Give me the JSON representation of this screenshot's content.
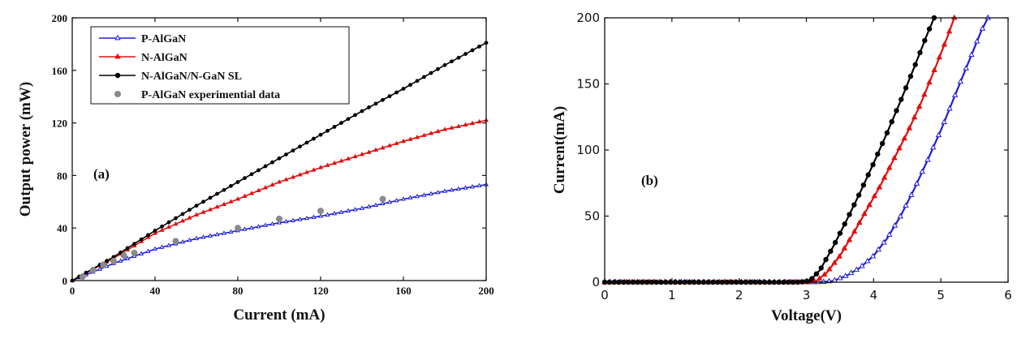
{
  "chart_data": [
    {
      "type": "line",
      "panel_label": "(a)",
      "xlabel": "Current (mA)",
      "ylabel": "Output power (mW)",
      "xlim": [
        0,
        200
      ],
      "ylim": [
        0,
        200
      ],
      "xticks": [
        0,
        40,
        80,
        120,
        160,
        200
      ],
      "yticks": [
        0,
        40,
        80,
        120,
        160,
        200
      ],
      "legend_position": "top-left",
      "series": [
        {
          "name": "P-AlGaN",
          "color": "#1f1fd6",
          "marker": "open-triangle",
          "x": [
            0,
            20,
            40,
            60,
            80,
            100,
            120,
            140,
            160,
            180,
            200
          ],
          "y": [
            0,
            13,
            24,
            32,
            38,
            44,
            49,
            55,
            62,
            68,
            73
          ]
        },
        {
          "name": "N-AlGaN",
          "color": "#e01010",
          "marker": "filled-triangle",
          "x": [
            0,
            20,
            40,
            60,
            80,
            100,
            120,
            140,
            160,
            180,
            200
          ],
          "y": [
            0,
            17,
            36,
            50,
            62,
            75,
            86,
            96,
            106,
            115,
            122
          ]
        },
        {
          "name": "N-AlGaN/N-GaN SL",
          "color": "#000000",
          "marker": "filled-circle",
          "x": [
            0,
            20,
            40,
            60,
            80,
            100,
            120,
            140,
            160,
            180,
            200
          ],
          "y": [
            0,
            18,
            38,
            57,
            75,
            93,
            111,
            129,
            146,
            164,
            181
          ]
        },
        {
          "name": "P-AlGaN experimential data",
          "color": "#8a8a8a",
          "marker": "gray-dot",
          "x": [
            5,
            10,
            15,
            20,
            25,
            30,
            50,
            80,
            100,
            120,
            150
          ],
          "y": [
            3,
            8,
            12,
            15,
            19,
            21,
            30,
            40,
            47,
            53,
            62
          ]
        }
      ]
    },
    {
      "type": "line",
      "panel_label": "(b)",
      "xlabel": "Voltage(V)",
      "ylabel": "Current(mA)",
      "xlim": [
        0,
        6
      ],
      "ylim": [
        0,
        200
      ],
      "xticks": [
        0,
        1,
        2,
        3,
        4,
        5,
        6
      ],
      "yticks": [
        0,
        50,
        100,
        150,
        200
      ],
      "series": [
        {
          "name": "P-AlGaN",
          "color": "#1f1fd6",
          "marker": "open-triangle",
          "x": [
            0,
            1,
            2,
            2.8,
            3.2,
            3.4,
            3.6,
            3.8,
            4.0,
            4.2,
            4.4,
            4.6,
            4.8,
            5.0,
            5.2,
            5.4,
            5.6,
            5.7
          ],
          "y": [
            0,
            0,
            0,
            0,
            0,
            1,
            5,
            11,
            20,
            33,
            50,
            70,
            92,
            115,
            140,
            165,
            190,
            200
          ]
        },
        {
          "name": "N-AlGaN",
          "color": "#e01010",
          "marker": "filled-triangle",
          "x": [
            0,
            1,
            2,
            3.0,
            3.15,
            3.3,
            3.5,
            3.7,
            3.9,
            4.1,
            4.3,
            4.5,
            4.7,
            4.9,
            5.1,
            5.2
          ],
          "y": [
            0,
            0,
            0,
            0,
            1,
            7,
            20,
            37,
            55,
            73,
            93,
            113,
            135,
            160,
            186,
            200
          ]
        },
        {
          "name": "N-AlGaN/N-GaN SL",
          "color": "#000000",
          "marker": "filled-circle",
          "x": [
            0,
            1,
            2,
            2.9,
            3.05,
            3.2,
            3.4,
            3.6,
            3.8,
            4.0,
            4.2,
            4.4,
            4.6,
            4.8,
            4.9
          ],
          "y": [
            0,
            0,
            0,
            0,
            1,
            9,
            27,
            47,
            68,
            90,
            113,
            137,
            162,
            188,
            200
          ]
        }
      ]
    }
  ]
}
